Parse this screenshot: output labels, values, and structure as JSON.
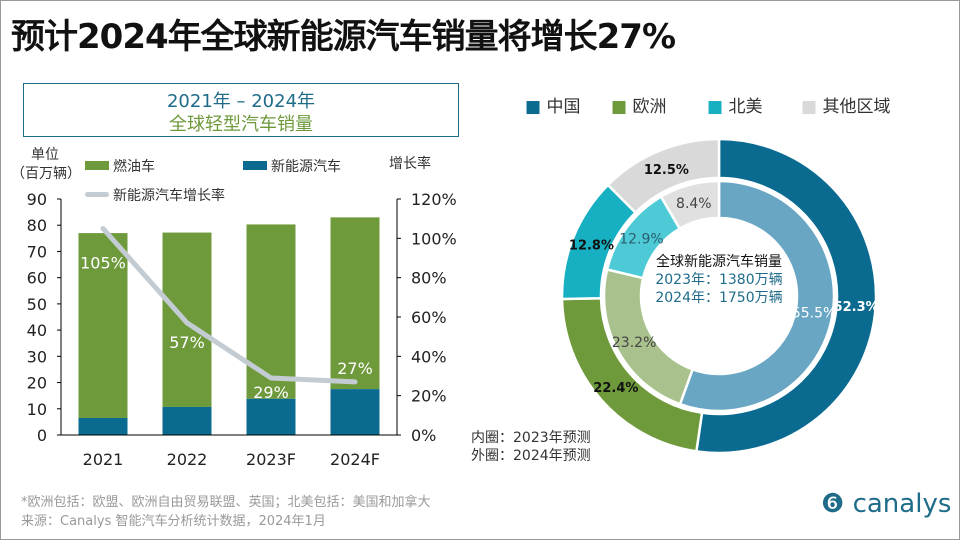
{
  "title": "预计2024年全球新能源汽车销量将增长27%",
  "colors": {
    "nev": "#0b6a8f",
    "ice": "#6f9a3c",
    "line": "#c3ccd3",
    "china": "#0b6a8f",
    "europe": "#6f9a3c",
    "na": "#17b0c2",
    "other": "#d9d9d9",
    "china_in": "#69a6c4",
    "europe_in": "#a9c18c",
    "na_in": "#4ecad6",
    "other_in": "#e0e0e0"
  },
  "chart_data": [
    {
      "type": "bar",
      "title": "2021年 – 2024年",
      "subtitle": "全球轻型汽车销量",
      "ylabel": "单位\n（百万辆）",
      "ylabel_line1": "单位",
      "ylabel_line2": "（百万辆）",
      "y2label": "增长率",
      "ylim": [
        0,
        90
      ],
      "y2lim": [
        0,
        120
      ],
      "yticks": [
        "0",
        "10",
        "20",
        "30",
        "40",
        "50",
        "60",
        "70",
        "80",
        "90"
      ],
      "y2ticks": [
        "0%",
        "20%",
        "40%",
        "60%",
        "80%",
        "100%",
        "120%"
      ],
      "categories": [
        "2021",
        "2022",
        "2023F",
        "2024F"
      ],
      "stacked": true,
      "series": [
        {
          "name": "燃油车",
          "values": [
            70.5,
            66.5,
            66.5,
            65.5
          ]
        },
        {
          "name": "新能源汽车",
          "values": [
            6.5,
            10.7,
            13.8,
            17.5
          ]
        },
        {
          "name": "新能源汽车增长率",
          "type": "line",
          "axis": "right",
          "values": [
            105,
            57,
            29,
            27
          ],
          "labels": [
            "105%",
            "57%",
            "29%",
            "27%"
          ]
        }
      ],
      "legend": "top"
    },
    {
      "type": "pie",
      "donut": true,
      "legend_entries": [
        "中国",
        "欧洲",
        "北美",
        "其他区域"
      ],
      "center_title": "全球新能源汽车销量",
      "center_line1": "2023年：1380万辆",
      "center_line2": "2024年：1750万辆",
      "inner_ring": {
        "name": "2023年预测",
        "label": "内圈：2023年预测",
        "values": [
          55.5,
          23.2,
          12.9,
          8.4
        ],
        "labels": [
          "55.5%",
          "23.2%",
          "12.9%",
          "8.4%"
        ]
      },
      "outer_ring": {
        "name": "2024年预测",
        "label": "外圈：2024年预测",
        "values": [
          52.3,
          22.4,
          12.8,
          12.5
        ],
        "labels": [
          "52.3%",
          "22.4%",
          "12.8%",
          "12.5%"
        ]
      }
    }
  ],
  "footer": {
    "note": "*欧洲包括：欧盟、欧洲自由贸易联盟、英国；北美包括：美国和加拿大",
    "source": "来源：Canalys 智能汽车分析统计数据，2024年1月",
    "logo": "canalys"
  }
}
